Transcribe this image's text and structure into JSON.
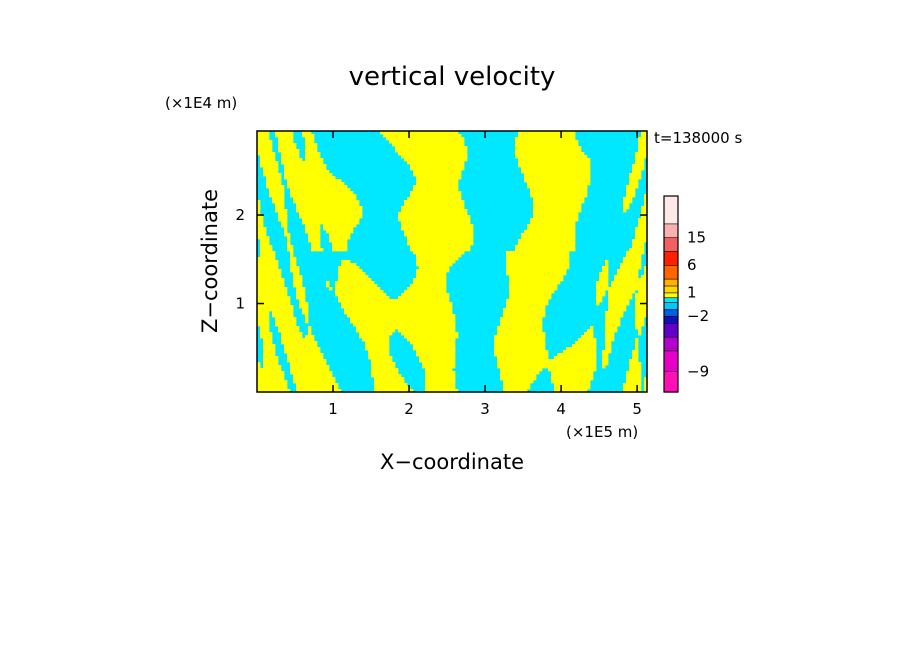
{
  "chart_data": {
    "type": "heatmap",
    "title": "vertical velocity",
    "xlabel": "X−coordinate",
    "ylabel": "Z−coordinate",
    "x_unit_label": "(×1E5 m)",
    "y_unit_label": "(×1E4 m)",
    "time_label": "t=138000 s",
    "xlim": [
      0,
      5.13
    ],
    "ylim": [
      0,
      2.95
    ],
    "x_ticks": [
      1,
      2,
      3,
      4,
      5
    ],
    "x_tick_labels": [
      "1",
      "2",
      "3",
      "4",
      "5"
    ],
    "y_ticks": [
      1,
      2
    ],
    "y_tick_labels": [
      "1",
      "2"
    ],
    "field_colors": {
      "positive": "#ffff00",
      "negative": "#00e8ff"
    },
    "colorbar": {
      "levels": [
        -12,
        -9,
        -7,
        -5,
        -3,
        -2,
        -1,
        -0.5,
        0.5,
        1,
        2,
        4,
        6,
        10,
        15,
        21,
        30
      ],
      "colors": [
        "#ff10b4",
        "#e800c8",
        "#b400d0",
        "#6000c8",
        "#1010c0",
        "#0060e0",
        "#00c8ff",
        "#00e8ff",
        "#ffff00",
        "#ffd800",
        "#ffb000",
        "#ff6400",
        "#ff2000",
        "#f06060",
        "#f8b0b0",
        "#ffe8e8"
      ],
      "tick_values": [
        -9,
        -2,
        1,
        6,
        15
      ],
      "tick_labels": [
        "−9",
        "−2",
        "1",
        "6",
        "15"
      ]
    }
  }
}
